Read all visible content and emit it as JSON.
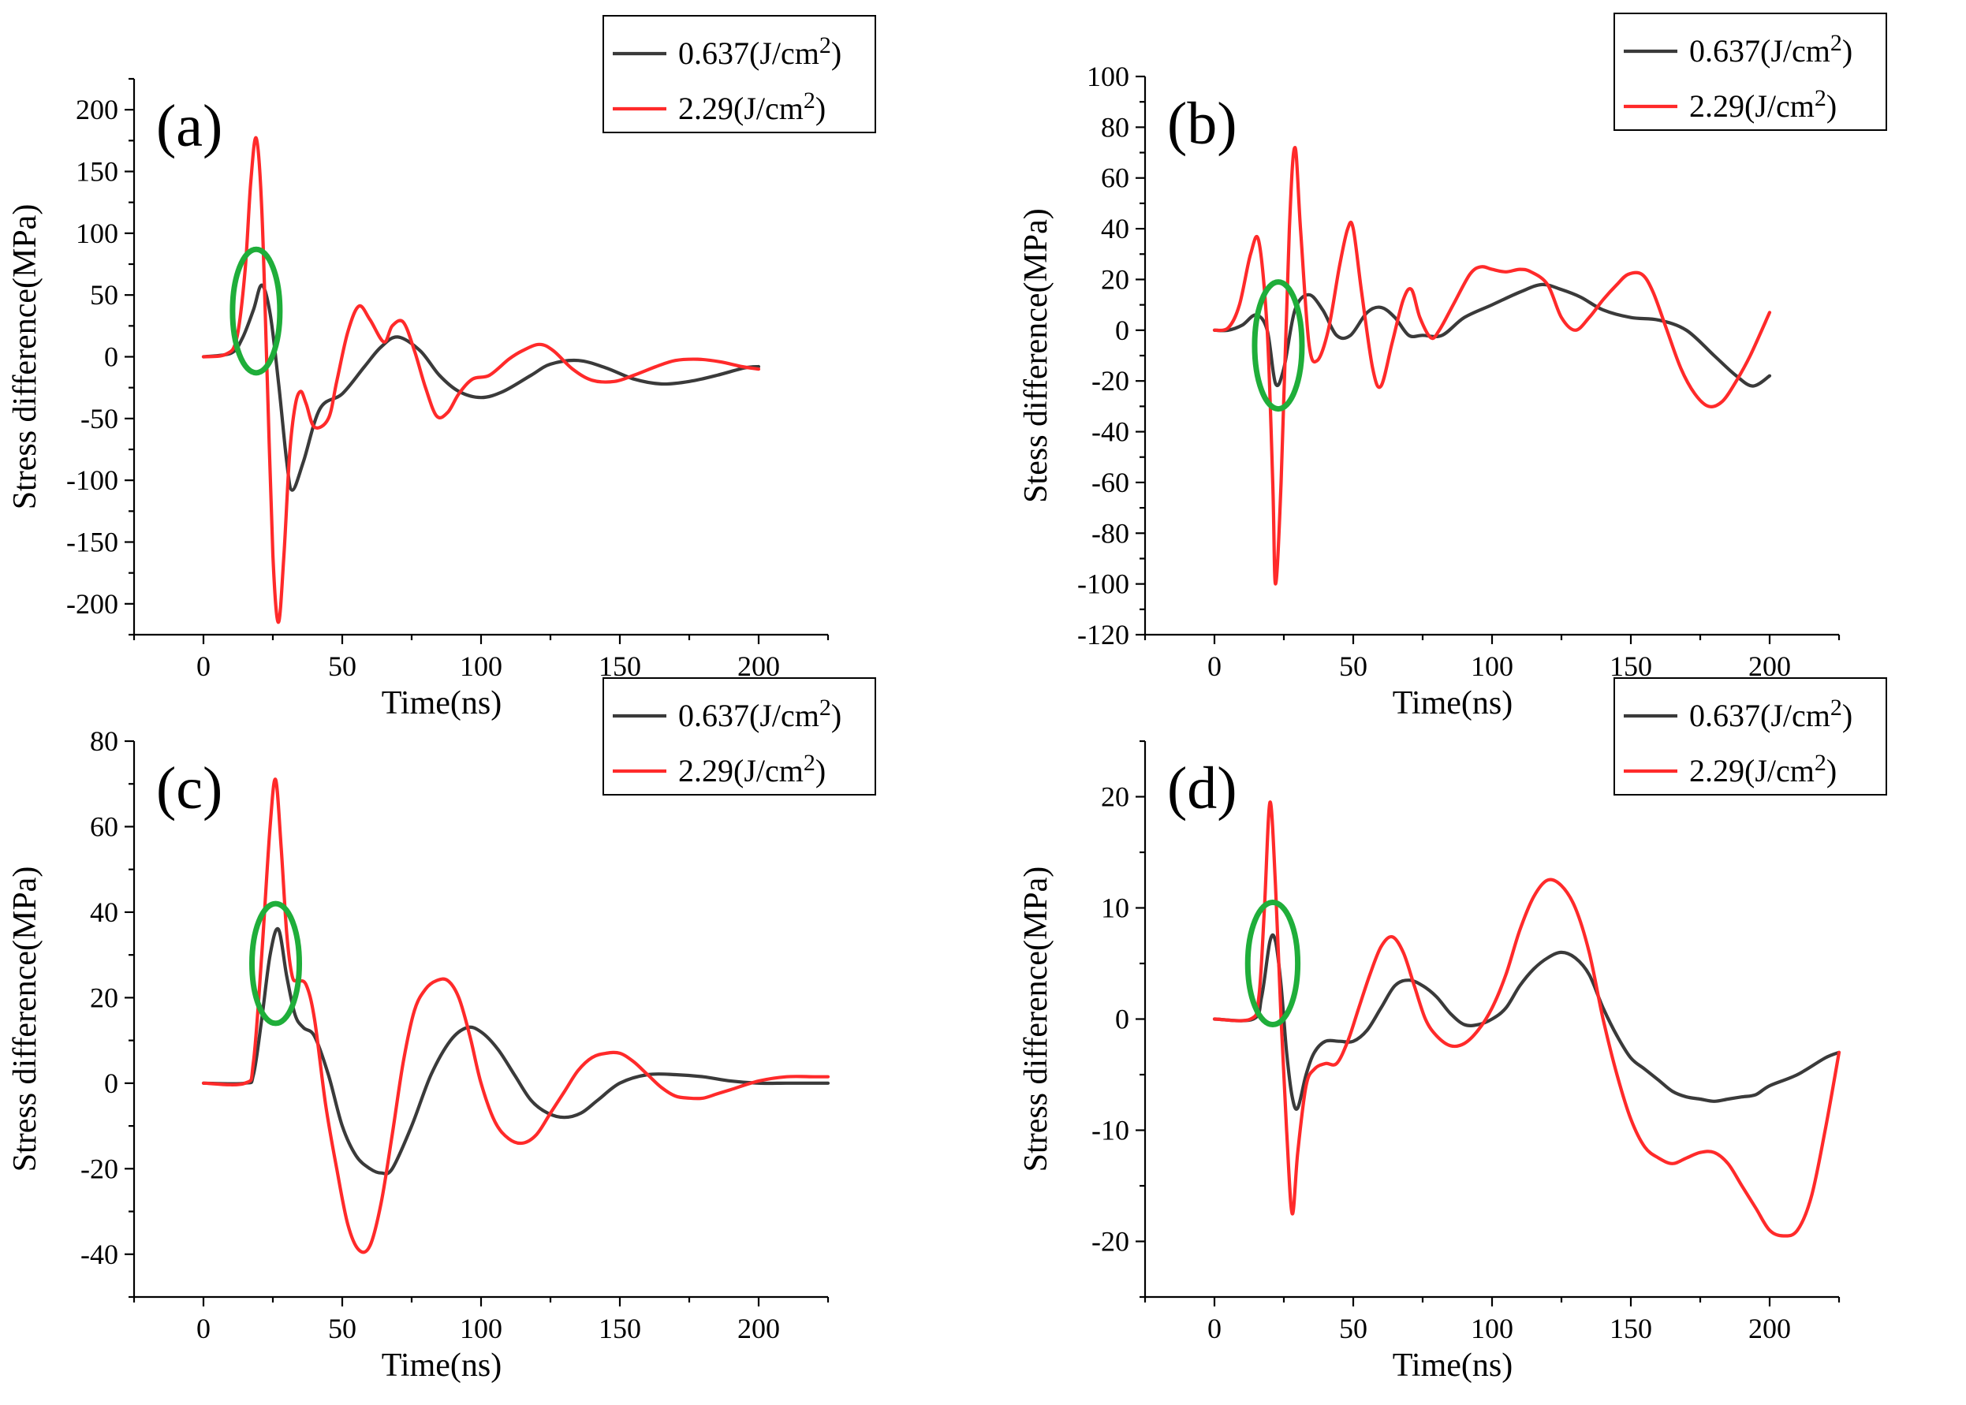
{
  "figure": {
    "colors": {
      "black_series": "#3a3a3a",
      "red_series": "#ff2a2a",
      "highlight": "#1fae3a"
    }
  },
  "chart_data": [
    {
      "type": "line",
      "panel_label": "(a)",
      "xlabel": "Time(ns)",
      "ylabel": "Stress difference(MPa)",
      "xlim": [
        -25,
        225
      ],
      "ylim": [
        -225,
        225
      ],
      "xticks": [
        0,
        50,
        100,
        150,
        200
      ],
      "yticks": [
        -200,
        -150,
        -100,
        -50,
        0,
        50,
        100,
        150,
        200
      ],
      "legend": {
        "position": "top-right",
        "entries": [
          "0.637(J/cm2)",
          "2.29(J/cm2)"
        ]
      },
      "highlight_ellipse": {
        "cx": 19,
        "cy": 37,
        "rx": 5,
        "ry": 50
      },
      "series": [
        {
          "name": "0.637(J/cm2)",
          "color": "#3a3a3a",
          "x": [
            0,
            10,
            14,
            18,
            21,
            24,
            27,
            30,
            32,
            36,
            42,
            50,
            58,
            64,
            70,
            78,
            85,
            92,
            100,
            108,
            118,
            125,
            135,
            145,
            155,
            165,
            175,
            185,
            195,
            200
          ],
          "y": [
            0,
            3,
            15,
            38,
            58,
            35,
            -20,
            -85,
            -108,
            -85,
            -42,
            -30,
            -8,
            8,
            16,
            5,
            -15,
            -28,
            -33,
            -28,
            -15,
            -6,
            -3,
            -9,
            -18,
            -22,
            -20,
            -15,
            -9,
            -8
          ]
        },
        {
          "name": "2.29(J/cm2)",
          "color": "#ff2a2a",
          "x": [
            0,
            8,
            12,
            15,
            17,
            19,
            21,
            23,
            25,
            27,
            29,
            31,
            33,
            35,
            37,
            40,
            45,
            48,
            52,
            56,
            60,
            65,
            68,
            72,
            76,
            80,
            84,
            88,
            92,
            97,
            103,
            110,
            115,
            121,
            126,
            133,
            140,
            148,
            155,
            163,
            170,
            178,
            186,
            194,
            200
          ],
          "y": [
            0,
            2,
            15,
            70,
            140,
            177,
            120,
            -20,
            -160,
            -215,
            -160,
            -80,
            -40,
            -28,
            -38,
            -57,
            -50,
            -20,
            20,
            41,
            30,
            12,
            25,
            28,
            5,
            -25,
            -48,
            -45,
            -30,
            -18,
            -15,
            -2,
            5,
            10,
            5,
            -10,
            -19,
            -20,
            -15,
            -8,
            -3,
            -2,
            -4,
            -8,
            -10
          ]
        }
      ]
    },
    {
      "type": "line",
      "panel_label": "(b)",
      "xlabel": "Time(ns)",
      "ylabel": "Stess difference(MPa)",
      "xlim": [
        -25,
        225
      ],
      "ylim": [
        -120,
        100
      ],
      "xticks": [
        0,
        50,
        100,
        150,
        200
      ],
      "yticks": [
        -120,
        -100,
        -80,
        -60,
        -40,
        -20,
        0,
        20,
        40,
        60,
        80,
        100
      ],
      "legend": {
        "position": "top-right",
        "entries": [
          "0.637(J/cm2)",
          "2.29(J/cm2)"
        ]
      },
      "highlight_ellipse": {
        "cx": 23,
        "cy": -6,
        "rx": 5,
        "ry": 25
      },
      "series": [
        {
          "name": "0.637(J/cm2)",
          "color": "#3a3a3a",
          "x": [
            0,
            5,
            10,
            15,
            19,
            22,
            25,
            29,
            34,
            39,
            44,
            49,
            55,
            60,
            65,
            70,
            75,
            82,
            90,
            100,
            110,
            118,
            125,
            132,
            140,
            150,
            160,
            170,
            180,
            188,
            194,
            200
          ],
          "y": [
            0,
            0,
            2,
            6,
            0,
            -21,
            -15,
            8,
            14,
            8,
            -2,
            -2,
            7,
            9,
            5,
            -2,
            -2,
            -2,
            5,
            10,
            15,
            18,
            16,
            13,
            8,
            5,
            4,
            0,
            -10,
            -18,
            -22,
            -18
          ]
        },
        {
          "name": "2.29(J/cm2)",
          "color": "#ff2a2a",
          "x": [
            0,
            5,
            9,
            13,
            16,
            19,
            21,
            22,
            24,
            27,
            29,
            31,
            34,
            37,
            41,
            45,
            48,
            50,
            53,
            57,
            60,
            64,
            68,
            71,
            74,
            78,
            81,
            86,
            92,
            96,
            100,
            105,
            110,
            114,
            120,
            125,
            130,
            135,
            140,
            145,
            149,
            154,
            158,
            163,
            168,
            173,
            178,
            183,
            188,
            193,
            200
          ],
          "y": [
            0,
            1,
            10,
            30,
            35,
            0,
            -60,
            -100,
            -60,
            40,
            72,
            40,
            -5,
            -12,
            0,
            25,
            40,
            40,
            15,
            -15,
            -22,
            -5,
            12,
            16,
            5,
            -3,
            0,
            10,
            22,
            25,
            24,
            23,
            24,
            23,
            18,
            5,
            0,
            5,
            12,
            18,
            22,
            22,
            15,
            0,
            -15,
            -25,
            -30,
            -28,
            -20,
            -10,
            7
          ]
        }
      ]
    },
    {
      "type": "line",
      "panel_label": "(c)",
      "xlabel": "Time(ns)",
      "ylabel": "Stress difference(MPa)",
      "xlim": [
        -25,
        225
      ],
      "ylim": [
        -50,
        80
      ],
      "xticks": [
        0,
        50,
        100,
        150,
        200
      ],
      "yticks": [
        -40,
        -20,
        0,
        20,
        40,
        60,
        80
      ],
      "legend": {
        "position": "top-right",
        "entries": [
          "0.637(J/cm2)",
          "2.29(J/cm2)"
        ]
      },
      "highlight_ellipse": {
        "cx": 26,
        "cy": 28,
        "rx": 6,
        "ry": 14
      },
      "series": [
        {
          "name": "0.637(J/cm2)",
          "color": "#3a3a3a",
          "x": [
            0,
            15,
            18,
            21,
            24,
            27,
            30,
            33,
            36,
            40,
            45,
            50,
            55,
            60,
            64,
            68,
            75,
            82,
            89,
            95,
            100,
            106,
            112,
            118,
            124,
            130,
            136,
            142,
            150,
            160,
            170,
            180,
            190,
            200,
            210,
            220,
            225
          ],
          "y": [
            0,
            0,
            2,
            15,
            30,
            36,
            25,
            16,
            13,
            11,
            2,
            -10,
            -17,
            -20,
            -21,
            -20,
            -10,
            2,
            10,
            13,
            12,
            8,
            2,
            -4,
            -7,
            -8,
            -7,
            -4,
            0,
            2,
            2,
            1.5,
            0.5,
            0,
            0,
            0,
            0
          ]
        },
        {
          "name": "2.29(J/cm2)",
          "color": "#ff2a2a",
          "x": [
            0,
            15,
            18,
            21,
            24,
            26,
            28,
            30,
            32,
            34,
            37,
            40,
            44,
            48,
            52,
            56,
            60,
            64,
            68,
            72,
            76,
            80,
            84,
            88,
            92,
            96,
            100,
            105,
            110,
            115,
            120,
            125,
            130,
            135,
            140,
            145,
            150,
            155,
            160,
            165,
            170,
            175,
            180,
            185,
            190,
            200,
            210,
            220,
            225
          ],
          "y": [
            0,
            0,
            5,
            30,
            60,
            71,
            55,
            35,
            25,
            24,
            23,
            15,
            -5,
            -20,
            -33,
            -39,
            -38,
            -28,
            -12,
            5,
            17,
            22,
            24,
            24,
            20,
            11,
            0,
            -9,
            -13,
            -14,
            -12,
            -7,
            -2,
            3,
            6,
            7,
            7,
            5,
            2,
            -1,
            -3,
            -3.5,
            -3.5,
            -2.5,
            -1.5,
            0.5,
            1.5,
            1.5,
            1.5
          ]
        }
      ]
    },
    {
      "type": "line",
      "panel_label": "(d)",
      "xlabel": "Time(ns)",
      "ylabel": "Stress difference(MPa)",
      "xlim": [
        -25,
        225
      ],
      "ylim": [
        -25,
        25
      ],
      "xticks": [
        0,
        50,
        100,
        150,
        200
      ],
      "yticks": [
        -20,
        -10,
        0,
        10,
        20
      ],
      "legend": {
        "position": "top-right",
        "entries": [
          "0.637(J/cm2)",
          "2.29(J/cm2)"
        ]
      },
      "highlight_ellipse": {
        "cx": 21,
        "cy": 5,
        "rx": 9,
        "ry": 5.5
      },
      "series": [
        {
          "name": "0.637(J/cm2)",
          "color": "#3a3a3a",
          "x": [
            0,
            14,
            17,
            20,
            22,
            24,
            26,
            28,
            30,
            33,
            36,
            40,
            45,
            50,
            55,
            60,
            65,
            70,
            75,
            80,
            85,
            90,
            95,
            100,
            105,
            110,
            115,
            120,
            125,
            130,
            135,
            140,
            145,
            150,
            155,
            160,
            165,
            170,
            175,
            180,
            185,
            190,
            195,
            200,
            210,
            220,
            225
          ],
          "y": [
            0,
            0,
            2,
            7,
            7,
            3,
            -3,
            -7,
            -8,
            -5,
            -3,
            -2,
            -2,
            -2,
            -1,
            1,
            3,
            3.5,
            3,
            2,
            0.5,
            -0.5,
            -0.5,
            0,
            1,
            3,
            4.5,
            5.5,
            6,
            5.5,
            4,
            1,
            -1.5,
            -3.5,
            -4.5,
            -5.5,
            -6.5,
            -7,
            -7.2,
            -7.4,
            -7.2,
            -7,
            -6.8,
            -6,
            -5,
            -3.5,
            -3
          ]
        },
        {
          "name": "2.29(J/cm2)",
          "color": "#ff2a2a",
          "x": [
            0,
            13,
            16,
            18,
            20,
            22,
            24,
            26,
            28,
            30,
            33,
            36,
            40,
            44,
            48,
            52,
            56,
            60,
            64,
            68,
            72,
            76,
            80,
            85,
            90,
            95,
            100,
            105,
            110,
            115,
            120,
            125,
            130,
            135,
            140,
            145,
            150,
            155,
            160,
            165,
            170,
            175,
            180,
            185,
            190,
            195,
            200,
            205,
            210,
            215,
            220,
            225
          ],
          "y": [
            0,
            0,
            2,
            10,
            19.5,
            12,
            0,
            -10,
            -17.5,
            -12,
            -6,
            -4.5,
            -4,
            -4,
            -2,
            1,
            4,
            6.5,
            7.4,
            6,
            3,
            0,
            -1.5,
            -2.4,
            -2.2,
            -1,
            1,
            4,
            8,
            11,
            12.5,
            12,
            10,
            6,
            0,
            -5,
            -9,
            -11.5,
            -12.5,
            -13,
            -12.5,
            -12,
            -12,
            -13,
            -15,
            -17,
            -19,
            -19.5,
            -19,
            -16,
            -10,
            -3
          ]
        }
      ]
    }
  ]
}
